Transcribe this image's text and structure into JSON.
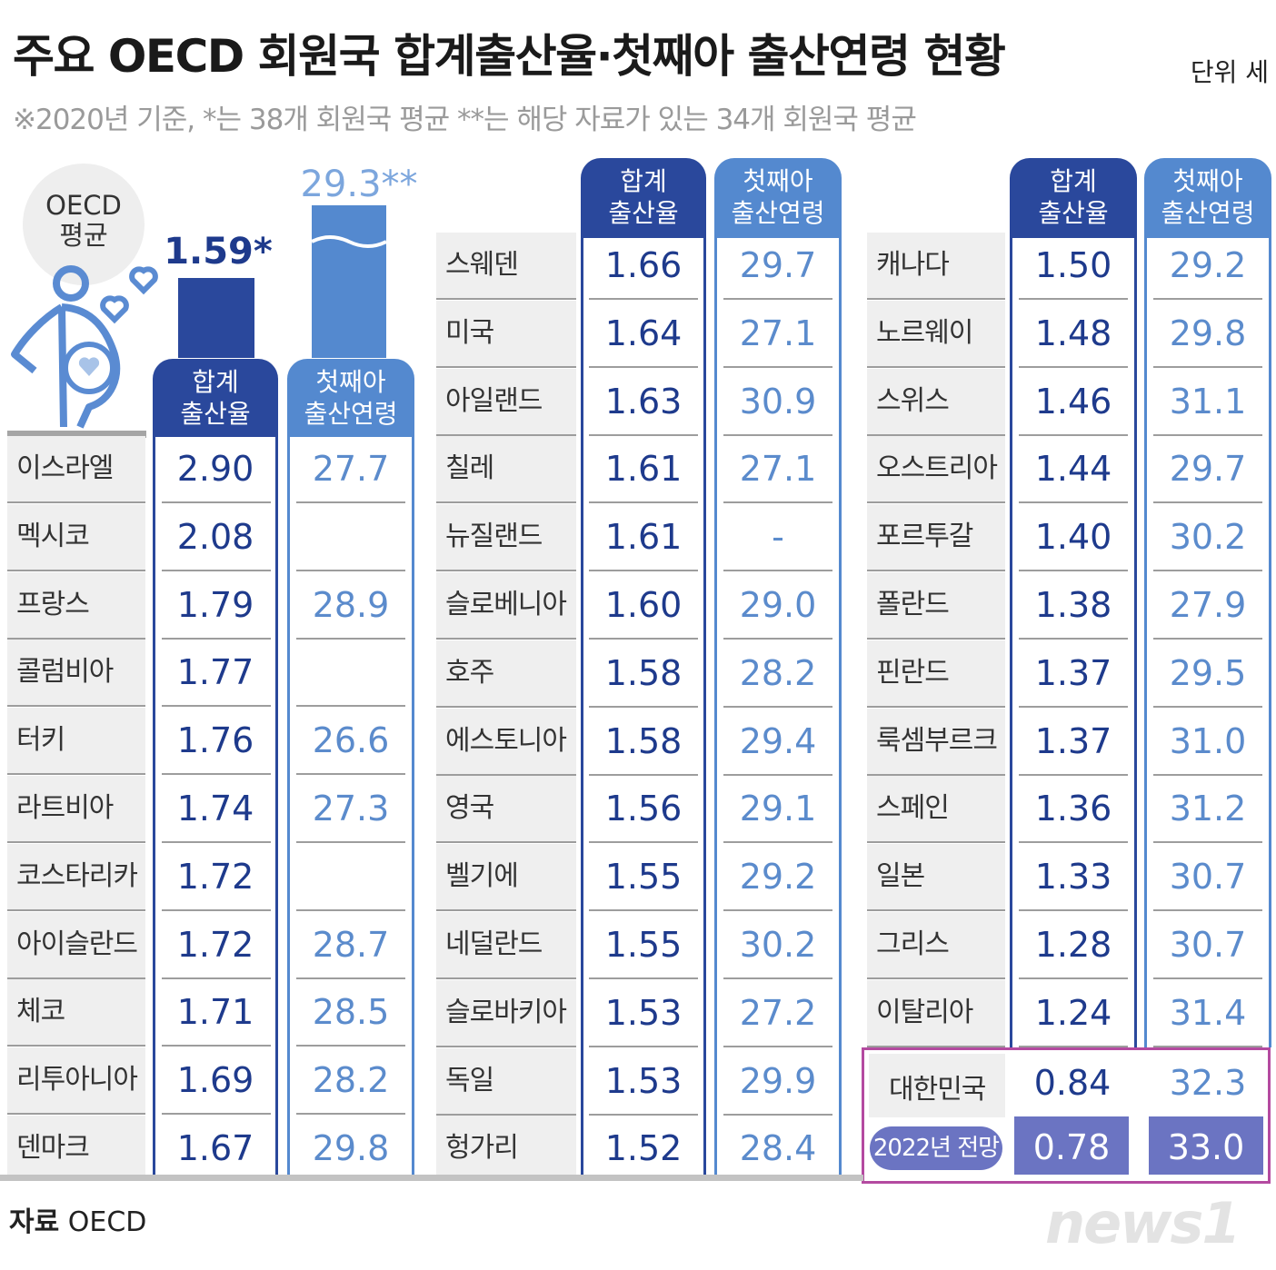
{
  "title": "주요 OECD 회원국 합계출산율·첫째아 출산연령 현황",
  "unit": "단위 세",
  "subtitle": "※2020년 기준, *는 38개 회원국 평균 **는 해당 자료가 있는 34개 회원국 평균",
  "source_label": "자료",
  "source_value": "OECD",
  "logo_text": "news1",
  "headers": {
    "rate_line1": "합계",
    "rate_line2": "출산율",
    "age_line1": "첫째아",
    "age_line2": "출산연령"
  },
  "oecd_avg": {
    "bubble_line1": "OECD",
    "bubble_line2": "평균",
    "rate_label": "1.59*",
    "age_label": "29.3**",
    "icons": [
      "pregnant-woman-icon",
      "heart-icon"
    ]
  },
  "colors": {
    "rate": "#2a489c",
    "age": "#5489cf",
    "highlight_border": "#b44aa0",
    "forecast_fill": "#6b74c2"
  },
  "korea": {
    "country": "대한민국",
    "rate": "0.84",
    "age": "32.3",
    "forecast_label": "2022년 전망",
    "forecast_rate": "0.78",
    "forecast_age": "33.0"
  },
  "chart_data": {
    "type": "table",
    "columns": [
      "country",
      "합계 출산율",
      "첫째아 출산연령"
    ],
    "oecd_average": {
      "rate": 1.59,
      "age": 29.3
    },
    "groups": [
      [
        {
          "country": "이스라엘",
          "rate": "2.90",
          "age": "27.7"
        },
        {
          "country": "멕시코",
          "rate": "2.08",
          "age": ""
        },
        {
          "country": "프랑스",
          "rate": "1.79",
          "age": "28.9"
        },
        {
          "country": "콜럼비아",
          "rate": "1.77",
          "age": ""
        },
        {
          "country": "터키",
          "rate": "1.76",
          "age": "26.6"
        },
        {
          "country": "라트비아",
          "rate": "1.74",
          "age": "27.3"
        },
        {
          "country": "코스타리카",
          "rate": "1.72",
          "age": ""
        },
        {
          "country": "아이슬란드",
          "rate": "1.72",
          "age": "28.7"
        },
        {
          "country": "체코",
          "rate": "1.71",
          "age": "28.5"
        },
        {
          "country": "리투아니아",
          "rate": "1.69",
          "age": "28.2"
        },
        {
          "country": "덴마크",
          "rate": "1.67",
          "age": "29.8"
        }
      ],
      [
        {
          "country": "스웨덴",
          "rate": "1.66",
          "age": "29.7"
        },
        {
          "country": "미국",
          "rate": "1.64",
          "age": "27.1"
        },
        {
          "country": "아일랜드",
          "rate": "1.63",
          "age": "30.9"
        },
        {
          "country": "칠레",
          "rate": "1.61",
          "age": "27.1"
        },
        {
          "country": "뉴질랜드",
          "rate": "1.61",
          "age": "-"
        },
        {
          "country": "슬로베니아",
          "rate": "1.60",
          "age": "29.0"
        },
        {
          "country": "호주",
          "rate": "1.58",
          "age": "28.2"
        },
        {
          "country": "에스토니아",
          "rate": "1.58",
          "age": "29.4"
        },
        {
          "country": "영국",
          "rate": "1.56",
          "age": "29.1"
        },
        {
          "country": "벨기에",
          "rate": "1.55",
          "age": "29.2"
        },
        {
          "country": "네덜란드",
          "rate": "1.55",
          "age": "30.2"
        },
        {
          "country": "슬로바키아",
          "rate": "1.53",
          "age": "27.2"
        },
        {
          "country": "독일",
          "rate": "1.53",
          "age": "29.9"
        },
        {
          "country": "헝가리",
          "rate": "1.52",
          "age": "28.4"
        }
      ],
      [
        {
          "country": "캐나다",
          "rate": "1.50",
          "age": "29.2"
        },
        {
          "country": "노르웨이",
          "rate": "1.48",
          "age": "29.8"
        },
        {
          "country": "스위스",
          "rate": "1.46",
          "age": "31.1"
        },
        {
          "country": "오스트리아",
          "rate": "1.44",
          "age": "29.7"
        },
        {
          "country": "포르투갈",
          "rate": "1.40",
          "age": "30.2"
        },
        {
          "country": "폴란드",
          "rate": "1.38",
          "age": "27.9"
        },
        {
          "country": "핀란드",
          "rate": "1.37",
          "age": "29.5"
        },
        {
          "country": "룩셈부르크",
          "rate": "1.37",
          "age": "31.0"
        },
        {
          "country": "스페인",
          "rate": "1.36",
          "age": "31.2"
        },
        {
          "country": "일본",
          "rate": "1.33",
          "age": "30.7"
        },
        {
          "country": "그리스",
          "rate": "1.28",
          "age": "30.7"
        },
        {
          "country": "이탈리아",
          "rate": "1.24",
          "age": "31.4"
        }
      ]
    ]
  }
}
